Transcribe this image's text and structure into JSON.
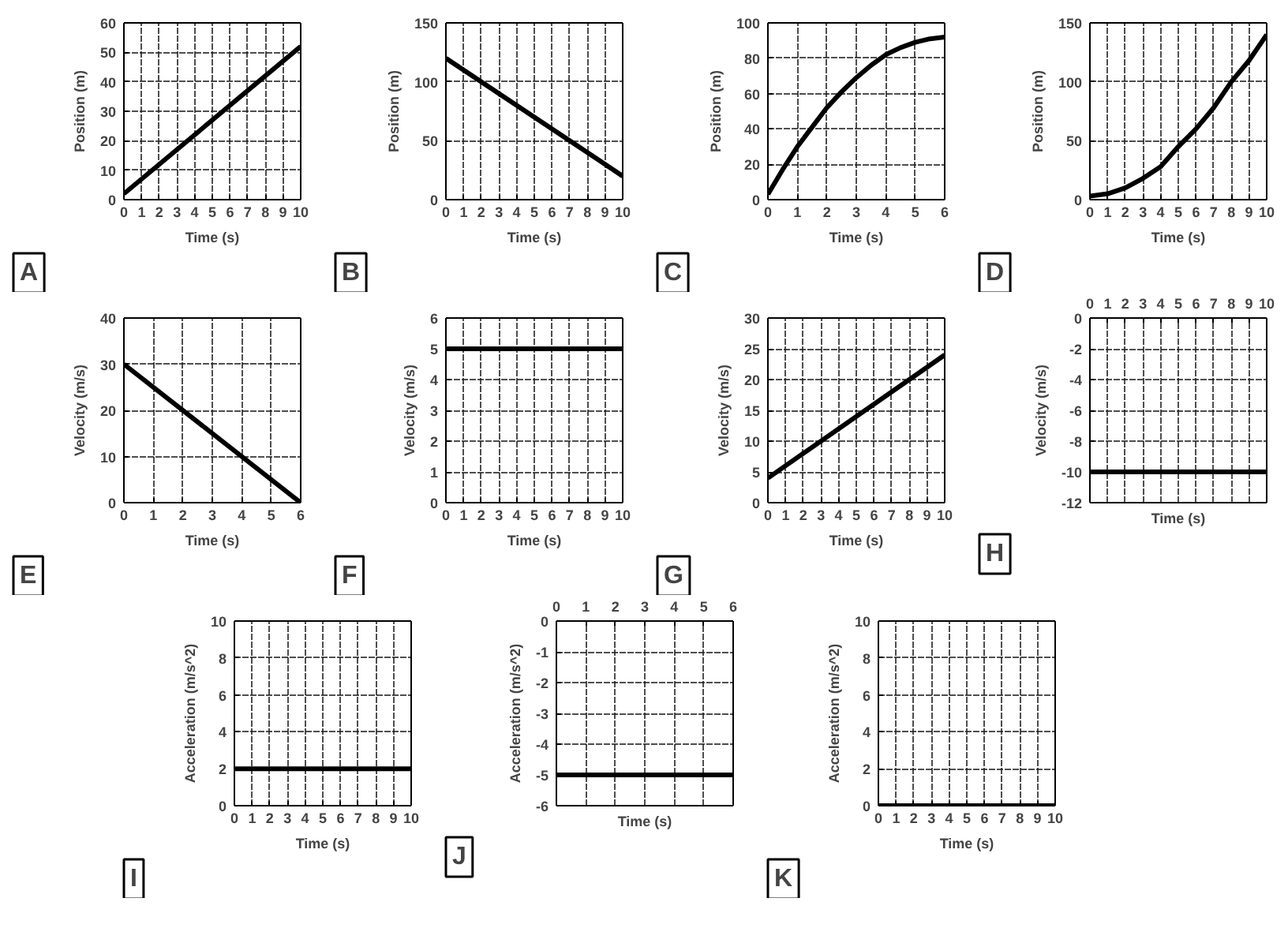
{
  "chart_data": [
    {
      "type": "line",
      "color": "#000000",
      "x": [
        0,
        10
      ],
      "values": [
        2,
        52
      ],
      "xlim": [
        0,
        10
      ],
      "ylim": [
        0,
        60
      ],
      "xticks": [
        0,
        1,
        2,
        3,
        4,
        5,
        6,
        7,
        8,
        9,
        10
      ],
      "yticks": [
        0,
        10,
        20,
        30,
        40,
        50,
        60
      ],
      "xlabel": "Time (s)",
      "ylabel": "Position (m)",
      "annotations": [
        "A"
      ],
      "grid": true
    },
    {
      "type": "line",
      "color": "#000000",
      "x": [
        0,
        10
      ],
      "values": [
        120,
        20
      ],
      "xlim": [
        0,
        10
      ],
      "ylim": [
        0,
        150
      ],
      "xticks": [
        0,
        1,
        2,
        3,
        4,
        5,
        6,
        7,
        8,
        9,
        10
      ],
      "yticks": [
        0,
        50,
        100,
        150
      ],
      "xlabel": "Time (s)",
      "ylabel": "Position (m)",
      "annotations": [
        "B"
      ],
      "grid": true
    },
    {
      "type": "line",
      "color": "#000000",
      "x": [
        0,
        0.5,
        1,
        1.5,
        2,
        2.5,
        3,
        3.5,
        4,
        4.5,
        5,
        5.5,
        6
      ],
      "values": [
        3,
        17,
        30,
        41,
        52,
        61,
        69,
        76,
        82,
        86,
        89,
        91,
        92
      ],
      "xlim": [
        0,
        6
      ],
      "ylim": [
        0,
        100
      ],
      "xticks": [
        0,
        1,
        2,
        3,
        4,
        5,
        6
      ],
      "yticks": [
        0,
        20,
        40,
        60,
        80,
        100
      ],
      "xlabel": "Time (s)",
      "ylabel": "Position (m)",
      "annotations": [
        "C"
      ],
      "grid": true
    },
    {
      "type": "line",
      "color": "#000000",
      "x": [
        0,
        1,
        2,
        3,
        4,
        5,
        6,
        7,
        8,
        9,
        10
      ],
      "values": [
        3,
        5,
        10,
        18,
        28,
        45,
        60,
        78,
        100,
        118,
        140
      ],
      "xlim": [
        0,
        10
      ],
      "ylim": [
        0,
        150
      ],
      "xticks": [
        0,
        1,
        2,
        3,
        4,
        5,
        6,
        7,
        8,
        9,
        10
      ],
      "yticks": [
        0,
        50,
        100,
        150
      ],
      "xlabel": "Time (s)",
      "ylabel": "Position (m)",
      "annotations": [
        "D"
      ],
      "grid": true
    },
    {
      "type": "line",
      "color": "#000000",
      "x": [
        0,
        6
      ],
      "values": [
        30,
        0
      ],
      "xlim": [
        0,
        6
      ],
      "ylim": [
        0,
        40
      ],
      "xticks": [
        0,
        1,
        2,
        3,
        4,
        5,
        6
      ],
      "yticks": [
        0,
        10,
        20,
        30,
        40
      ],
      "xlabel": "Time (s)",
      "ylabel": "Velocity (m/s)",
      "annotations": [
        "E"
      ],
      "grid": true
    },
    {
      "type": "line",
      "color": "#000000",
      "x": [
        0,
        10
      ],
      "values": [
        5,
        5
      ],
      "xlim": [
        0,
        10
      ],
      "ylim": [
        0,
        6
      ],
      "xticks": [
        0,
        1,
        2,
        3,
        4,
        5,
        6,
        7,
        8,
        9,
        10
      ],
      "yticks": [
        0,
        1,
        2,
        3,
        4,
        5,
        6
      ],
      "xlabel": "Time (s)",
      "ylabel": "Velocity (m/s)",
      "annotations": [
        "F"
      ],
      "grid": true
    },
    {
      "type": "line",
      "color": "#000000",
      "x": [
        0,
        10
      ],
      "values": [
        4,
        24
      ],
      "xlim": [
        0,
        10
      ],
      "ylim": [
        0,
        30
      ],
      "xticks": [
        0,
        1,
        2,
        3,
        4,
        5,
        6,
        7,
        8,
        9,
        10
      ],
      "yticks": [
        0,
        5,
        10,
        15,
        20,
        25,
        30
      ],
      "xlabel": "Time (s)",
      "ylabel": "Velocity (m/s)",
      "annotations": [
        "G"
      ],
      "grid": true
    },
    {
      "type": "line",
      "color": "#000000",
      "x": [
        0,
        10
      ],
      "values": [
        -10,
        -10
      ],
      "xlim": [
        0,
        10
      ],
      "ylim": [
        -12,
        0
      ],
      "xticks": [
        0,
        1,
        2,
        3,
        4,
        5,
        6,
        7,
        8,
        9,
        10
      ],
      "yticks": [
        0,
        -2,
        -4,
        -6,
        -8,
        -10,
        -12
      ],
      "xlabel": "Time (s)",
      "ylabel": "Velocity (m/s)",
      "annotations": [
        "H"
      ],
      "grid": true
    },
    {
      "type": "line",
      "color": "#000000",
      "x": [
        0,
        10
      ],
      "values": [
        2,
        2
      ],
      "xlim": [
        0,
        10
      ],
      "ylim": [
        0,
        10
      ],
      "xticks": [
        0,
        1,
        2,
        3,
        4,
        5,
        6,
        7,
        8,
        9,
        10
      ],
      "yticks": [
        0,
        2,
        4,
        6,
        8,
        10
      ],
      "xlabel": "Time (s)",
      "ylabel": "Acceleration (m/s^2)",
      "annotations": [
        "I"
      ],
      "grid": true
    },
    {
      "type": "line",
      "color": "#000000",
      "x": [
        0,
        6
      ],
      "values": [
        -5,
        -5
      ],
      "xlim": [
        0,
        6
      ],
      "ylim": [
        -6,
        0
      ],
      "xticks": [
        0,
        1,
        2,
        3,
        4,
        5,
        6
      ],
      "yticks": [
        0,
        -1,
        -2,
        -3,
        -4,
        -5,
        -6
      ],
      "xlabel": "Time (s)",
      "ylabel": "Acceleration (m/s^2)",
      "annotations": [
        "J"
      ],
      "grid": true
    },
    {
      "type": "line",
      "color": "#000000",
      "x": [
        0,
        10
      ],
      "values": [
        0,
        0
      ],
      "xlim": [
        0,
        10
      ],
      "ylim": [
        0,
        10
      ],
      "xticks": [
        0,
        1,
        2,
        3,
        4,
        5,
        6,
        7,
        8,
        9,
        10
      ],
      "yticks": [
        0,
        2,
        4,
        6,
        8,
        10
      ],
      "xlabel": "Time (s)",
      "ylabel": "Acceleration (m/s^2)",
      "annotations": [
        "K"
      ],
      "grid": true
    }
  ]
}
